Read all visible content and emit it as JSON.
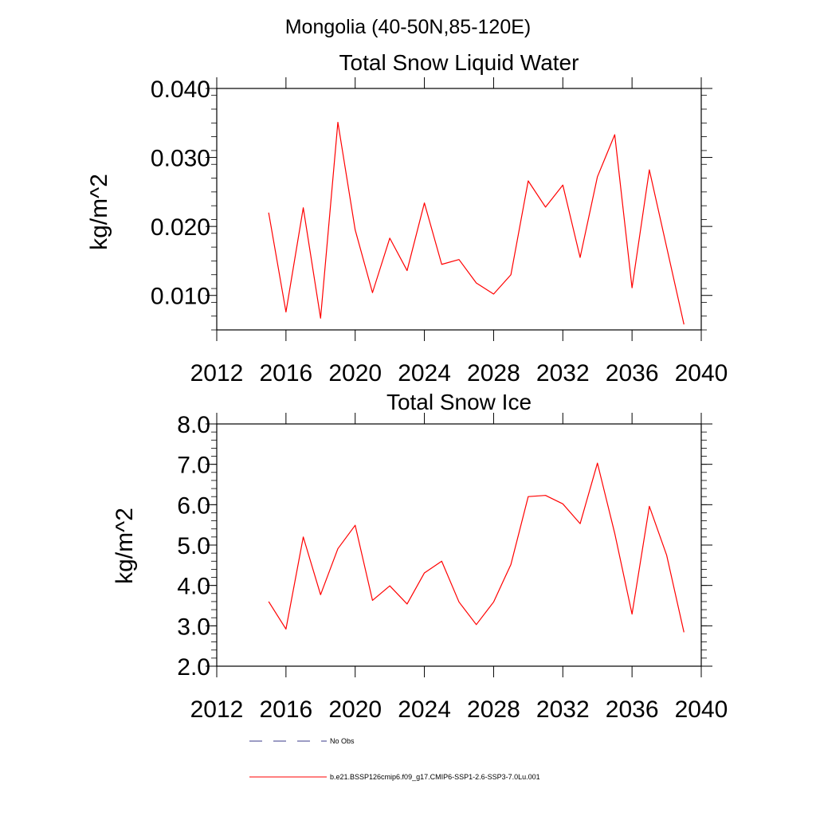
{
  "page_title": "Mongolia (40-50N,85-120E)",
  "chart_data": [
    {
      "type": "line",
      "title": "Total Snow Liquid Water",
      "xlabel": "",
      "ylabel": "kg/m^2",
      "xlim": [
        2012,
        2040
      ],
      "ylim": [
        0.005,
        0.04
      ],
      "xticks": [
        2012,
        2016,
        2020,
        2024,
        2028,
        2032,
        2036,
        2040
      ],
      "yticks": [
        0.01,
        0.02,
        0.03,
        0.04
      ],
      "ytick_labels": [
        "0.010",
        "0.020",
        "0.030",
        "0.040"
      ],
      "series": [
        {
          "name": "b.e21.BSSP126cmip6.f09_g17.CMIP6-SSP1-2.6-SSP3-7.0Lu.001",
          "color": "#ff0000",
          "x": [
            2015,
            2016,
            2017,
            2018,
            2019,
            2020,
            2021,
            2022,
            2023,
            2024,
            2025,
            2026,
            2027,
            2028,
            2029,
            2030,
            2031,
            2032,
            2033,
            2034,
            2035,
            2036,
            2037,
            2038,
            2039
          ],
          "y": [
            0.022,
            0.0076,
            0.0227,
            0.0067,
            0.0351,
            0.0195,
            0.0104,
            0.0183,
            0.0136,
            0.0234,
            0.0145,
            0.0152,
            0.0118,
            0.0102,
            0.013,
            0.0266,
            0.0228,
            0.026,
            0.0155,
            0.0272,
            0.0333,
            0.0111,
            0.0282,
            0.017,
            0.0058
          ]
        }
      ]
    },
    {
      "type": "line",
      "title": "Total Snow Ice",
      "xlabel": "",
      "ylabel": "kg/m^2",
      "xlim": [
        2012,
        2040
      ],
      "ylim": [
        2.0,
        8.0
      ],
      "xticks": [
        2012,
        2016,
        2020,
        2024,
        2028,
        2032,
        2036,
        2040
      ],
      "yticks": [
        2.0,
        3.0,
        4.0,
        5.0,
        6.0,
        7.0,
        8.0
      ],
      "ytick_labels": [
        "2.0",
        "3.0",
        "4.0",
        "5.0",
        "6.0",
        "7.0",
        "8.0"
      ],
      "series": [
        {
          "name": "b.e21.BSSP126cmip6.f09_g17.CMIP6-SSP1-2.6-SSP3-7.0Lu.001",
          "color": "#ff0000",
          "x": [
            2015,
            2016,
            2017,
            2018,
            2019,
            2020,
            2021,
            2022,
            2023,
            2024,
            2025,
            2026,
            2027,
            2028,
            2029,
            2030,
            2031,
            2032,
            2033,
            2034,
            2035,
            2036,
            2037,
            2038,
            2039
          ],
          "y": [
            3.6,
            2.92,
            5.2,
            3.77,
            4.91,
            5.49,
            3.63,
            3.99,
            3.54,
            4.31,
            4.6,
            3.59,
            3.03,
            3.59,
            4.52,
            6.2,
            6.23,
            6.02,
            5.53,
            7.03,
            5.29,
            3.29,
            5.96,
            4.75,
            2.84
          ]
        }
      ]
    }
  ],
  "legend": {
    "items": [
      {
        "label": "No Obs",
        "color": "#3a3a8a",
        "style": "dashed"
      },
      {
        "label": "b.e21.BSSP126cmip6.f09_g17.CMIP6-SSP1-2.6-SSP3-7.0Lu.001",
        "color": "#ff0000",
        "style": "solid"
      }
    ]
  }
}
